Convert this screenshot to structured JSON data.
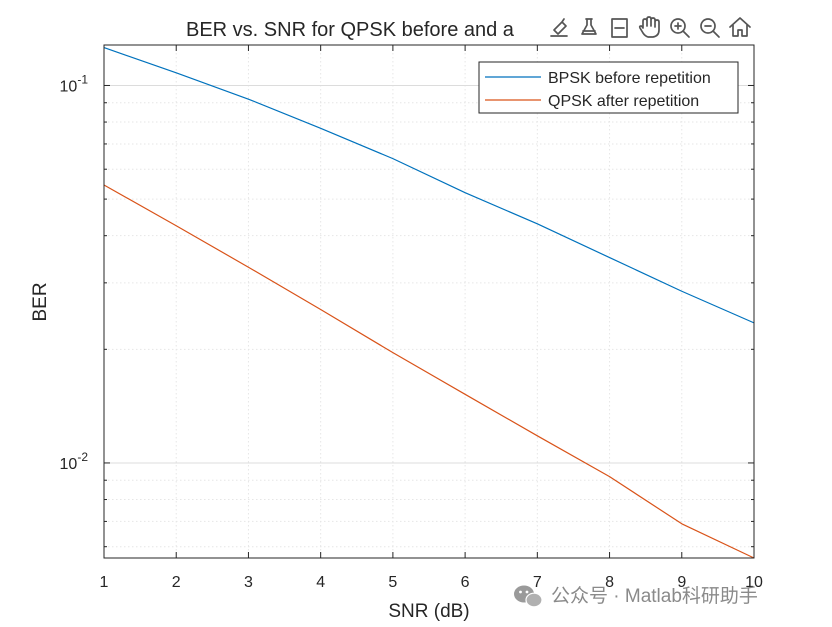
{
  "chart_data": {
    "type": "line",
    "title": "BER vs. SNR for QPSK before and a",
    "xlabel": "SNR (dB)",
    "ylabel": "BER",
    "xlim": [
      1,
      10
    ],
    "ylim": [
      0.0056,
      0.128
    ],
    "yscale": "log",
    "x_ticks": [
      1,
      2,
      3,
      4,
      5,
      6,
      7,
      8,
      9,
      10
    ],
    "x_tick_labels": [
      "1",
      "2",
      "3",
      "4",
      "5",
      "6",
      "7",
      "8",
      "9",
      "10"
    ],
    "y_major_ticks": [
      {
        "value": 0.1,
        "base": "10",
        "exp": "-1"
      },
      {
        "value": 0.01,
        "base": "10",
        "exp": "-2"
      }
    ],
    "grid": true,
    "legend_position": "top-right",
    "x": [
      1,
      2,
      3,
      4,
      5,
      6,
      7,
      8,
      9,
      10
    ],
    "series": [
      {
        "name": "BPSK before repetition",
        "color": "#0072bd",
        "values": [
          0.126,
          0.108,
          0.092,
          0.077,
          0.064,
          0.052,
          0.043,
          0.035,
          0.0285,
          0.0235
        ]
      },
      {
        "name": "QPSK after repetition",
        "color": "#d95319",
        "values": [
          0.0545,
          0.0425,
          0.033,
          0.0255,
          0.0196,
          0.0152,
          0.0118,
          0.0092,
          0.0069,
          0.0056
        ]
      }
    ]
  },
  "toolbar": {
    "icons": [
      "export-icon",
      "brush-icon",
      "datatip-icon",
      "pan-icon",
      "zoom-in-icon",
      "zoom-out-icon",
      "home-icon"
    ]
  },
  "watermark": {
    "text": "公众号 · Matlab科研助手",
    "icon": "wechat-icon"
  }
}
